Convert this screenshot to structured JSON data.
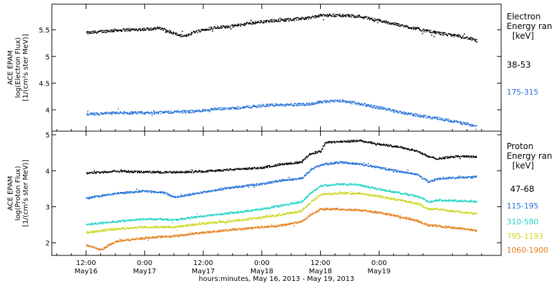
{
  "chart_data": [
    {
      "type": "scatter",
      "panel": "electron",
      "ylabel": [
        "ACE EPAM",
        "log(Electron Flux)",
        "[1/(cm²s ster MeV)]"
      ],
      "ylim": [
        3.6,
        5.98
      ],
      "yticks": [
        4.0,
        4.5,
        5.0,
        5.5
      ],
      "legend_title": [
        "Electron",
        "Energy ran",
        "[keV]"
      ],
      "series": [
        {
          "name": "38-53",
          "color": "#000000",
          "points": [
            [
              0,
              5.45
            ],
            [
              6,
              5.5
            ],
            [
              12,
              5.52
            ],
            [
              15,
              5.54
            ],
            [
              18,
              5.44
            ],
            [
              20,
              5.38
            ],
            [
              22,
              5.47
            ],
            [
              26,
              5.55
            ],
            [
              30,
              5.58
            ],
            [
              34,
              5.64
            ],
            [
              38,
              5.68
            ],
            [
              42,
              5.7
            ],
            [
              46,
              5.74
            ],
            [
              48,
              5.78
            ],
            [
              52,
              5.78
            ],
            [
              56,
              5.76
            ],
            [
              58,
              5.72
            ],
            [
              62,
              5.64
            ],
            [
              66,
              5.56
            ],
            [
              70,
              5.48
            ],
            [
              74,
              5.42
            ],
            [
              78,
              5.36
            ],
            [
              80,
              5.3
            ]
          ]
        },
        {
          "name": "175-315",
          "color": "#1f6fd6",
          "points": [
            [
              0,
              3.92
            ],
            [
              6,
              3.95
            ],
            [
              12,
              3.95
            ],
            [
              18,
              3.97
            ],
            [
              22,
              3.98
            ],
            [
              26,
              4.02
            ],
            [
              30,
              4.04
            ],
            [
              34,
              4.07
            ],
            [
              38,
              4.1
            ],
            [
              42,
              4.1
            ],
            [
              46,
              4.12
            ],
            [
              48,
              4.16
            ],
            [
              52,
              4.18
            ],
            [
              56,
              4.12
            ],
            [
              60,
              4.05
            ],
            [
              64,
              3.97
            ],
            [
              68,
              3.9
            ],
            [
              72,
              3.85
            ],
            [
              76,
              3.78
            ],
            [
              80,
              3.7
            ]
          ]
        }
      ]
    },
    {
      "type": "scatter",
      "panel": "proton",
      "ylabel": [
        "ACE EPAM",
        "log(Proton Flux)",
        "[1/(cm²s ster MeV)]"
      ],
      "ylim": [
        1.65,
        5.1
      ],
      "yticks": [
        2,
        3,
        4,
        5
      ],
      "legend_title": [
        "Proton",
        "Energy ran",
        "[keV]"
      ],
      "series": [
        {
          "name": "47-68",
          "color": "#000000",
          "points": [
            [
              0,
              3.95
            ],
            [
              6,
              4.0
            ],
            [
              12,
              3.98
            ],
            [
              18,
              3.97
            ],
            [
              24,
              4.0
            ],
            [
              30,
              4.05
            ],
            [
              36,
              4.1
            ],
            [
              40,
              4.2
            ],
            [
              44,
              4.25
            ],
            [
              46,
              4.5
            ],
            [
              48,
              4.55
            ],
            [
              49,
              4.8
            ],
            [
              52,
              4.82
            ],
            [
              56,
              4.85
            ],
            [
              60,
              4.75
            ],
            [
              64,
              4.68
            ],
            [
              68,
              4.55
            ],
            [
              70,
              4.4
            ],
            [
              72,
              4.35
            ],
            [
              76,
              4.42
            ],
            [
              80,
              4.4
            ]
          ]
        },
        {
          "name": "115-195",
          "color": "#1f6fd6",
          "points": [
            [
              0,
              3.25
            ],
            [
              6,
              3.38
            ],
            [
              12,
              3.45
            ],
            [
              16,
              3.4
            ],
            [
              18,
              3.28
            ],
            [
              24,
              3.42
            ],
            [
              30,
              3.55
            ],
            [
              36,
              3.65
            ],
            [
              40,
              3.75
            ],
            [
              44,
              3.8
            ],
            [
              46,
              4.05
            ],
            [
              48,
              4.18
            ],
            [
              52,
              4.25
            ],
            [
              56,
              4.2
            ],
            [
              60,
              4.1
            ],
            [
              64,
              4.0
            ],
            [
              68,
              3.9
            ],
            [
              70,
              3.7
            ],
            [
              72,
              3.8
            ],
            [
              76,
              3.82
            ],
            [
              80,
              3.85
            ]
          ]
        },
        {
          "name": "310-580",
          "color": "#1fd4c4",
          "points": [
            [
              0,
              2.52
            ],
            [
              6,
              2.6
            ],
            [
              12,
              2.68
            ],
            [
              18,
              2.65
            ],
            [
              24,
              2.75
            ],
            [
              30,
              2.85
            ],
            [
              36,
              2.95
            ],
            [
              40,
              3.05
            ],
            [
              44,
              3.15
            ],
            [
              46,
              3.4
            ],
            [
              48,
              3.6
            ],
            [
              52,
              3.65
            ],
            [
              56,
              3.62
            ],
            [
              60,
              3.5
            ],
            [
              64,
              3.4
            ],
            [
              68,
              3.3
            ],
            [
              70,
              3.15
            ],
            [
              72,
              3.2
            ],
            [
              76,
              3.18
            ],
            [
              80,
              3.15
            ]
          ]
        },
        {
          "name": "795-1193",
          "color": "#c8d81a",
          "points": [
            [
              0,
              2.3
            ],
            [
              6,
              2.4
            ],
            [
              12,
              2.45
            ],
            [
              18,
              2.45
            ],
            [
              24,
              2.55
            ],
            [
              30,
              2.62
            ],
            [
              36,
              2.72
            ],
            [
              40,
              2.8
            ],
            [
              44,
              2.9
            ],
            [
              46,
              3.15
            ],
            [
              48,
              3.35
            ],
            [
              52,
              3.4
            ],
            [
              56,
              3.38
            ],
            [
              60,
              3.3
            ],
            [
              64,
              3.2
            ],
            [
              68,
              3.1
            ],
            [
              70,
              2.95
            ],
            [
              72,
              2.95
            ],
            [
              76,
              2.88
            ],
            [
              80,
              2.82
            ]
          ]
        },
        {
          "name": "1060-1900",
          "color": "#e67a14",
          "points": [
            [
              0,
              1.95
            ],
            [
              3,
              1.82
            ],
            [
              6,
              2.05
            ],
            [
              12,
              2.15
            ],
            [
              18,
              2.2
            ],
            [
              24,
              2.3
            ],
            [
              30,
              2.38
            ],
            [
              36,
              2.45
            ],
            [
              40,
              2.5
            ],
            [
              44,
              2.6
            ],
            [
              46,
              2.8
            ],
            [
              48,
              2.95
            ],
            [
              52,
              2.95
            ],
            [
              56,
              2.92
            ],
            [
              60,
              2.85
            ],
            [
              64,
              2.75
            ],
            [
              68,
              2.62
            ],
            [
              70,
              2.5
            ],
            [
              72,
              2.48
            ],
            [
              76,
              2.42
            ],
            [
              80,
              2.35
            ]
          ]
        }
      ]
    }
  ],
  "x_axis": {
    "xlabel": "hours:minutes, May 16, 2013 - May 19, 2013",
    "xlim": [
      -7,
      85
    ],
    "ticks": [
      {
        "hour": 0,
        "time": "12:00",
        "date": "May16"
      },
      {
        "hour": 12,
        "time": "0:00",
        "date": "May17"
      },
      {
        "hour": 24,
        "time": "12:00",
        "date": "May17"
      },
      {
        "hour": 36,
        "time": "0:00",
        "date": "May18"
      },
      {
        "hour": 48,
        "time": "12:00",
        "date": "May18"
      },
      {
        "hour": 60,
        "time": "0:00",
        "date": "May19"
      }
    ]
  }
}
